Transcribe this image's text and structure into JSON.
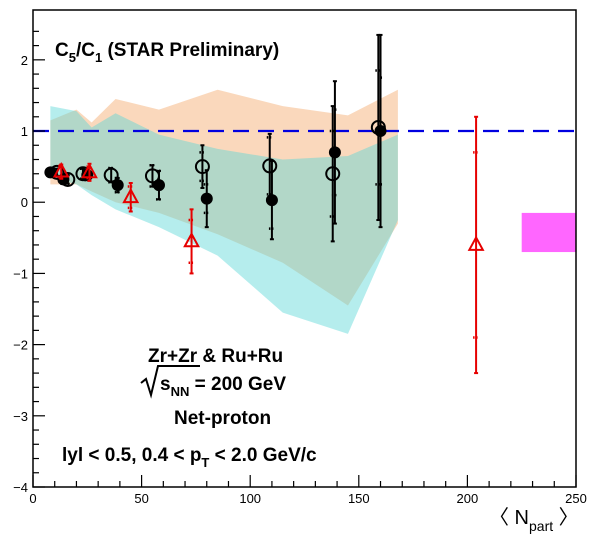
{
  "chart_data": {
    "type": "scatter",
    "title_main": "C",
    "title_sub1": "5",
    "title_mid": "/C",
    "title_sub2": "1",
    "title_tail": " (STAR Preliminary)",
    "xlabel_open": "〈 N",
    "xlabel_sub": "part",
    "xlabel_close": " 〉",
    "xlim": [
      0,
      250
    ],
    "ylim": [
      -4,
      2.7
    ],
    "xticks": [
      0,
      50,
      100,
      150,
      200,
      250
    ],
    "yticks": [
      -4,
      -3,
      -2,
      -1,
      0,
      1,
      2
    ],
    "reference_line": {
      "y": 1,
      "style": "dashed",
      "color": "#0000e0"
    },
    "annotations": {
      "line1": "Zr+Zr & Ru+Ru",
      "line2_s": "s",
      "line2_sub": "NN",
      "line2_tail": " = 200 GeV",
      "line3": "Net-proton",
      "line4_pre": "lyl < 0.5, 0.4 < p",
      "line4_sub": "T",
      "line4_tail": " < 2.0 GeV/c"
    },
    "bands": [
      {
        "color": "#f5b27a",
        "opacity": 0.5,
        "upper": [
          [
            8,
            1.15
          ],
          [
            20,
            1.3
          ],
          [
            27,
            1.12
          ],
          [
            38,
            1.45
          ],
          [
            58,
            1.3
          ],
          [
            85,
            1.58
          ],
          [
            115,
            1.35
          ],
          [
            145,
            1.22
          ],
          [
            168,
            1.58
          ]
        ],
        "lower": [
          [
            168,
            -0.3
          ],
          [
            145,
            -1.45
          ],
          [
            115,
            -0.85
          ],
          [
            85,
            -0.45
          ],
          [
            58,
            -0.15
          ],
          [
            38,
            0.0
          ],
          [
            27,
            0.15
          ],
          [
            20,
            0.25
          ],
          [
            8,
            0.25
          ]
        ]
      },
      {
        "color": "#5ad8d8",
        "opacity": 0.45,
        "upper": [
          [
            8,
            1.35
          ],
          [
            20,
            1.28
          ],
          [
            27,
            1.05
          ],
          [
            38,
            1.25
          ],
          [
            58,
            0.95
          ],
          [
            85,
            0.75
          ],
          [
            115,
            0.6
          ],
          [
            145,
            0.65
          ],
          [
            168,
            0.95
          ]
        ],
        "lower": [
          [
            168,
            -0.25
          ],
          [
            145,
            -1.85
          ],
          [
            115,
            -1.55
          ],
          [
            85,
            -0.75
          ],
          [
            58,
            -0.35
          ],
          [
            38,
            -0.1
          ],
          [
            27,
            0.1
          ],
          [
            20,
            0.25
          ],
          [
            8,
            0.35
          ]
        ]
      }
    ],
    "systematic_box": {
      "x": [
        225,
        250
      ],
      "y": [
        -0.7,
        -0.15
      ],
      "color": "#ff66ff"
    },
    "series": [
      {
        "marker": "filled-circle",
        "color": "#000000",
        "points": [
          {
            "x": 8,
            "y": 0.42,
            "stat": 0.05,
            "sys": 0.05
          },
          {
            "x": 14,
            "y": 0.32,
            "stat": 0.06,
            "sys": 0.06
          },
          {
            "x": 25,
            "y": 0.38,
            "stat": 0.07,
            "sys": 0.07
          },
          {
            "x": 39,
            "y": 0.24,
            "stat": 0.1,
            "sys": 0.1
          },
          {
            "x": 58,
            "y": 0.24,
            "stat": 0.2,
            "sys": 0.2
          },
          {
            "x": 80,
            "y": 0.05,
            "stat": 0.4,
            "sys": 0.2
          },
          {
            "x": 110,
            "y": 0.03,
            "stat": 0.55,
            "sys": 0.4
          },
          {
            "x": 139,
            "y": 0.7,
            "stat": 1.0,
            "sys": 0.6
          },
          {
            "x": 160,
            "y": 1.0,
            "stat": 1.35,
            "sys": 0.75
          }
        ]
      },
      {
        "marker": "open-circle",
        "color": "#000000",
        "points": [
          {
            "x": 11,
            "y": 0.42,
            "stat": 0.05,
            "sys": 0.05
          },
          {
            "x": 16,
            "y": 0.32,
            "stat": 0.06,
            "sys": 0.06
          },
          {
            "x": 23,
            "y": 0.4,
            "stat": 0.07,
            "sys": 0.07
          },
          {
            "x": 36,
            "y": 0.38,
            "stat": 0.1,
            "sys": 0.1
          },
          {
            "x": 55,
            "y": 0.37,
            "stat": 0.15,
            "sys": 0.15
          },
          {
            "x": 78,
            "y": 0.5,
            "stat": 0.3,
            "sys": 0.2
          },
          {
            "x": 109,
            "y": 0.51,
            "stat": 0.45,
            "sys": 0.4
          },
          {
            "x": 138,
            "y": 0.4,
            "stat": 0.95,
            "sys": 0.6
          },
          {
            "x": 159,
            "y": 1.05,
            "stat": 1.3,
            "sys": 0.8
          }
        ]
      },
      {
        "marker": "open-triangle",
        "color": "#e60000",
        "points": [
          {
            "x": 13,
            "y": 0.43,
            "stat": 0.1,
            "sys": 0.08
          },
          {
            "x": 26,
            "y": 0.42,
            "stat": 0.12,
            "sys": 0.08
          },
          {
            "x": 45,
            "y": 0.07,
            "stat": 0.2,
            "sys": 0.15
          },
          {
            "x": 73,
            "y": -0.55,
            "stat": 0.45,
            "sys": 0.3
          },
          {
            "x": 204,
            "y": -0.6,
            "stat": 1.8,
            "sys": 1.3
          }
        ]
      }
    ]
  }
}
